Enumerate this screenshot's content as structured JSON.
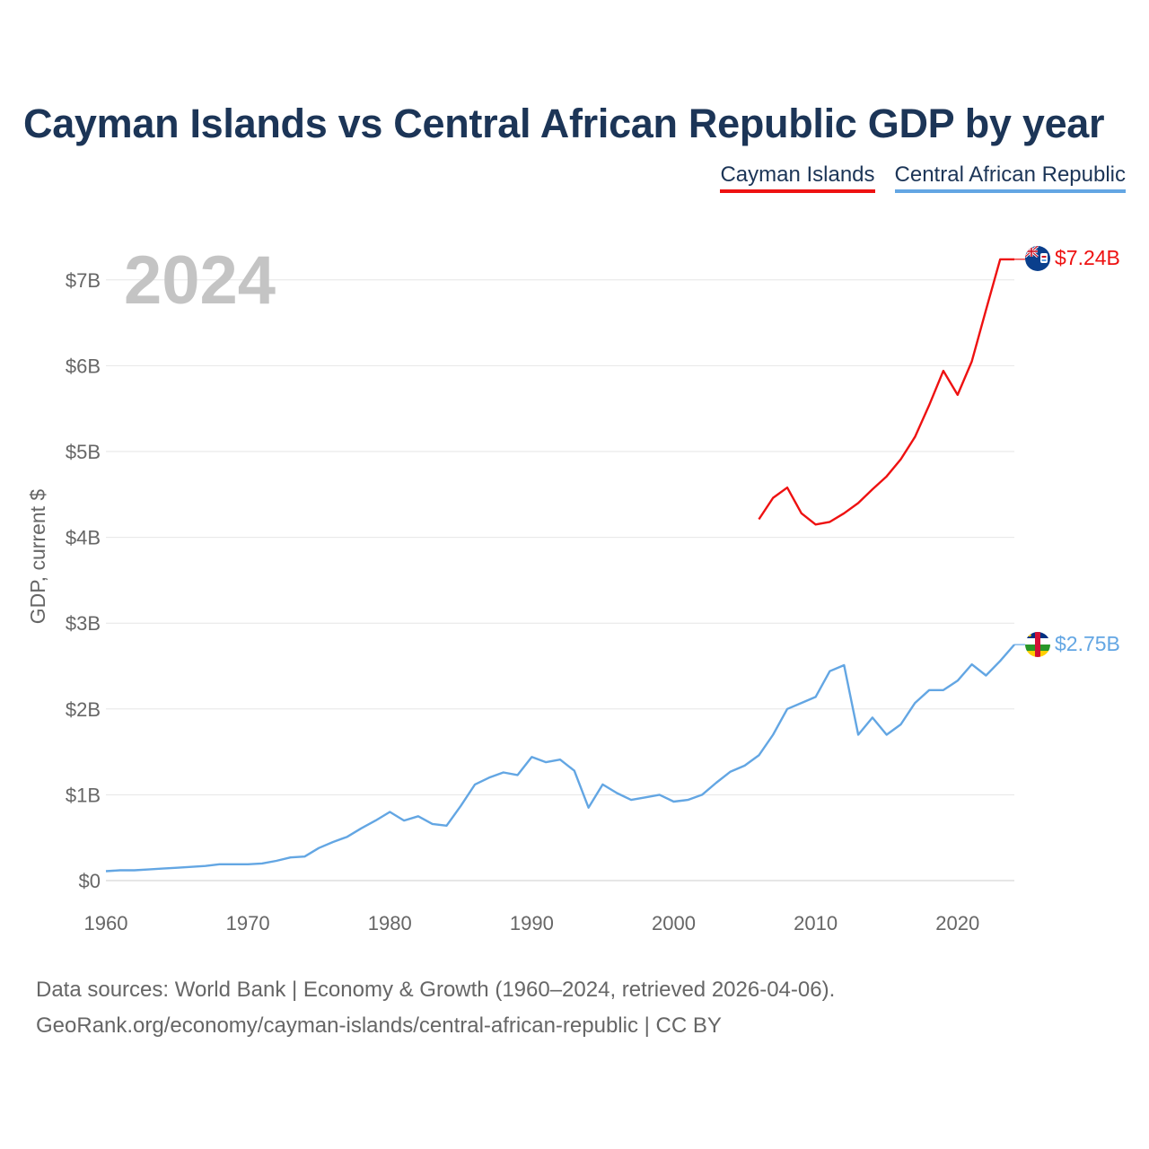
{
  "page": {
    "title": "Cayman Islands vs Central African Republic GDP by year"
  },
  "legend": [
    {
      "label": "Cayman Islands",
      "color": "#ee1111"
    },
    {
      "label": "Central African Republic",
      "color": "#63a6e3"
    }
  ],
  "footer": {
    "line1": "Data sources: World Bank | Economy & Growth (1960–2024, retrieved 2026-04-06).",
    "line2": "GeoRank.org/economy/cayman-islands/central-african-republic | CC BY"
  },
  "chart_data": {
    "type": "line",
    "title": "Cayman Islands vs Central African Republic GDP by year",
    "xlabel": "",
    "ylabel": "GDP, current $",
    "year_label": "2024",
    "xlim": [
      1960,
      2024
    ],
    "ylim": [
      0,
      7.2
    ],
    "x_ticks": [
      1960,
      1970,
      1980,
      1990,
      2000,
      2010,
      2020
    ],
    "y_ticks": [
      {
        "value": 0,
        "label": "$0"
      },
      {
        "value": 1,
        "label": "$1B"
      },
      {
        "value": 2,
        "label": "$2B"
      },
      {
        "value": 3,
        "label": "$3B"
      },
      {
        "value": 4,
        "label": "$4B"
      },
      {
        "value": 5,
        "label": "$5B"
      },
      {
        "value": 6,
        "label": "$6B"
      },
      {
        "value": 7,
        "label": "$7B"
      }
    ],
    "grid": true,
    "units": "billions USD",
    "series": [
      {
        "name": "Cayman Islands",
        "color": "#ee1111",
        "end_label": "$7.24B",
        "x": [
          2006,
          2007,
          2008,
          2009,
          2010,
          2011,
          2012,
          2013,
          2014,
          2015,
          2016,
          2017,
          2018,
          2019,
          2020,
          2021,
          2022,
          2023,
          2024
        ],
        "values": [
          4.21,
          4.46,
          4.58,
          4.28,
          4.15,
          4.18,
          4.28,
          4.4,
          4.56,
          4.71,
          4.91,
          5.17,
          5.54,
          5.94,
          5.66,
          6.05,
          6.65,
          7.24,
          7.24
        ]
      },
      {
        "name": "Central African Republic",
        "color": "#63a6e3",
        "end_label": "$2.75B",
        "x": [
          1960,
          1961,
          1962,
          1963,
          1964,
          1965,
          1966,
          1967,
          1968,
          1969,
          1970,
          1971,
          1972,
          1973,
          1974,
          1975,
          1976,
          1977,
          1978,
          1979,
          1980,
          1981,
          1982,
          1983,
          1984,
          1985,
          1986,
          1987,
          1988,
          1989,
          1990,
          1991,
          1992,
          1993,
          1994,
          1995,
          1996,
          1997,
          1998,
          1999,
          2000,
          2001,
          2002,
          2003,
          2004,
          2005,
          2006,
          2007,
          2008,
          2009,
          2010,
          2011,
          2012,
          2013,
          2014,
          2015,
          2016,
          2017,
          2018,
          2019,
          2020,
          2021,
          2022,
          2023,
          2024
        ],
        "values": [
          0.11,
          0.12,
          0.12,
          0.13,
          0.14,
          0.15,
          0.16,
          0.17,
          0.19,
          0.19,
          0.19,
          0.2,
          0.23,
          0.27,
          0.28,
          0.38,
          0.45,
          0.51,
          0.61,
          0.7,
          0.8,
          0.7,
          0.75,
          0.66,
          0.64,
          0.87,
          1.12,
          1.2,
          1.26,
          1.23,
          1.44,
          1.38,
          1.41,
          1.28,
          0.85,
          1.12,
          1.02,
          0.94,
          0.97,
          1.0,
          0.92,
          0.94,
          1.0,
          1.14,
          1.27,
          1.34,
          1.46,
          1.7,
          2.0,
          2.07,
          2.14,
          2.44,
          2.51,
          1.7,
          1.9,
          1.7,
          1.82,
          2.07,
          2.22,
          2.22,
          2.33,
          2.52,
          2.39,
          2.56,
          2.75
        ]
      }
    ]
  }
}
